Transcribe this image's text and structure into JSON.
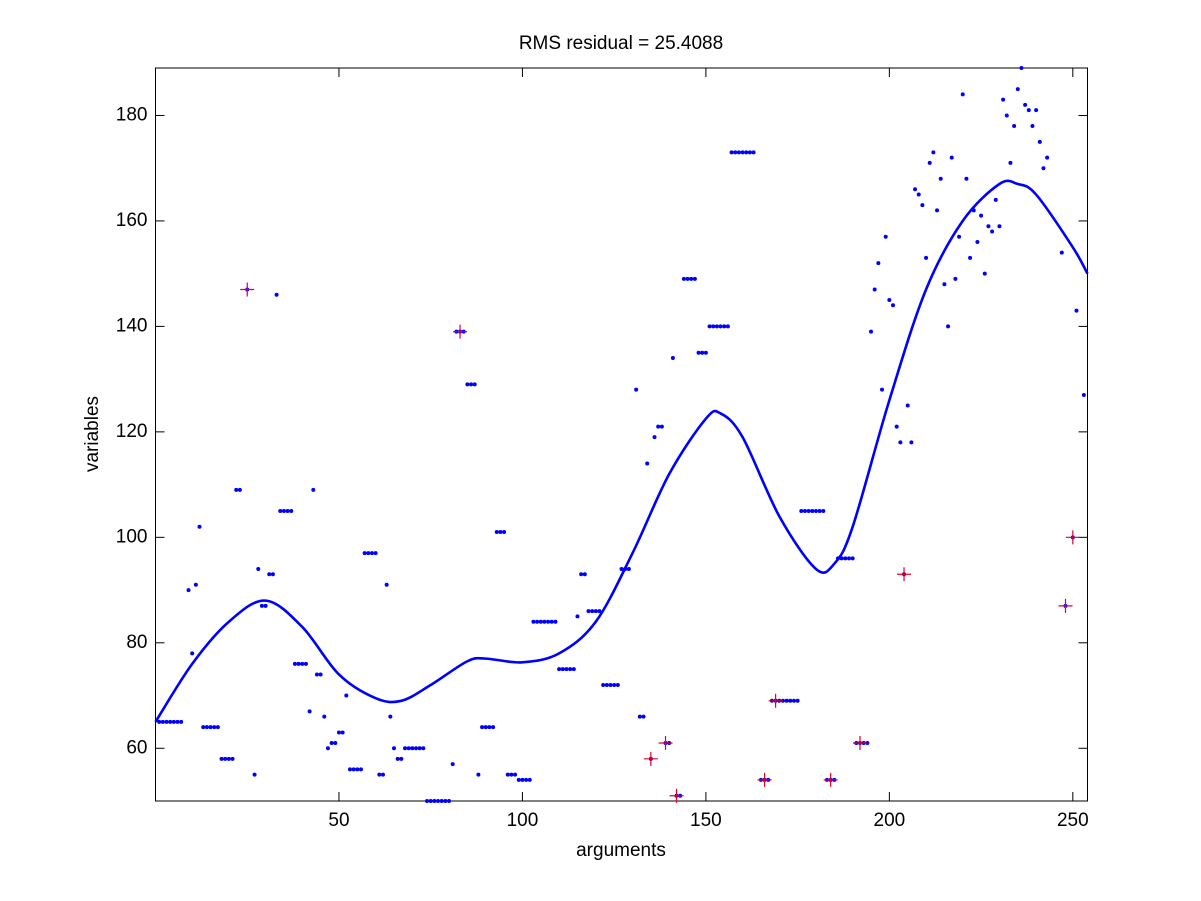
{
  "chart_data": {
    "type": "scatter",
    "title": "RMS residual = 25.4088",
    "x_label": "arguments",
    "y_label": "variables",
    "xlim": [
      0,
      254
    ],
    "ylim": [
      50,
      189
    ],
    "xticks": [
      50,
      100,
      150,
      200,
      250
    ],
    "yticks": [
      60,
      80,
      100,
      120,
      140,
      160,
      180
    ],
    "series": [
      {
        "type": "scatter",
        "marker": "dot",
        "color": "#0000ff",
        "x": [
          1,
          2,
          3,
          4,
          5,
          6,
          7,
          9,
          10,
          11,
          12,
          13,
          14,
          15,
          16,
          17,
          18,
          19,
          20,
          21,
          22,
          23,
          25,
          27,
          28,
          29,
          30,
          31,
          32,
          33,
          34,
          35,
          36,
          37,
          38,
          39,
          40,
          41,
          42,
          43,
          44,
          45,
          46,
          47,
          48,
          49,
          50,
          51,
          52,
          53,
          54,
          55,
          56,
          57,
          58,
          59,
          60,
          61,
          62,
          63,
          64,
          65,
          66,
          67,
          68,
          69,
          70,
          71,
          72,
          73,
          74,
          75,
          76,
          77,
          78,
          79,
          80,
          81,
          82,
          83,
          84,
          85,
          86,
          87,
          88,
          89,
          90,
          91,
          92,
          93,
          94,
          95,
          96,
          97,
          98,
          99,
          100,
          101,
          102,
          103,
          104,
          105,
          106,
          107,
          108,
          109,
          110,
          111,
          112,
          113,
          114,
          115,
          116,
          117,
          118,
          119,
          120,
          121,
          122,
          123,
          124,
          125,
          126,
          127,
          128,
          129,
          131,
          132,
          133,
          134,
          135,
          136,
          137,
          138,
          139,
          140,
          141,
          142,
          143,
          144,
          145,
          146,
          147,
          148,
          149,
          150,
          151,
          152,
          153,
          154,
          155,
          156,
          157,
          158,
          159,
          160,
          161,
          162,
          163,
          165,
          166,
          167,
          168,
          169,
          170,
          171,
          172,
          173,
          174,
          175,
          176,
          177,
          178,
          179,
          180,
          181,
          182,
          183,
          184,
          185,
          186,
          187,
          188,
          189,
          190,
          191,
          192,
          193,
          194,
          195,
          196,
          197,
          198,
          199,
          200,
          201,
          202,
          203,
          204,
          205,
          206,
          207,
          208,
          209,
          210,
          211,
          212,
          213,
          214,
          215,
          216,
          217,
          218,
          219,
          220,
          221,
          222,
          223,
          224,
          225,
          226,
          227,
          228,
          229,
          230,
          231,
          232,
          233,
          234,
          235,
          236,
          237,
          238,
          239,
          240,
          241,
          242,
          243,
          247,
          248,
          250,
          251,
          253
        ],
        "values": [
          65,
          65,
          65,
          65,
          65,
          65,
          65,
          90,
          78,
          91,
          102,
          64,
          64,
          64,
          64,
          64,
          58,
          58,
          58,
          58,
          109,
          109,
          147,
          55,
          94,
          87,
          87,
          93,
          93,
          146,
          105,
          105,
          105,
          105,
          76,
          76,
          76,
          76,
          67,
          109,
          74,
          74,
          66,
          60,
          61,
          61,
          63,
          63,
          70,
          56,
          56,
          56,
          56,
          97,
          97,
          97,
          97,
          55,
          55,
          91,
          66,
          60,
          58,
          58,
          60,
          60,
          60,
          60,
          60,
          60,
          50,
          50,
          50,
          50,
          50,
          50,
          50,
          57,
          139,
          139,
          139,
          129,
          129,
          129,
          55,
          64,
          64,
          64,
          64,
          101,
          101,
          101,
          55,
          55,
          55,
          54,
          54,
          54,
          54,
          84,
          84,
          84,
          84,
          84,
          84,
          84,
          75,
          75,
          75,
          75,
          75,
          85,
          93,
          93,
          86,
          86,
          86,
          86,
          72,
          72,
          72,
          72,
          72,
          94,
          94,
          94,
          128,
          66,
          66,
          114,
          58,
          119,
          121,
          121,
          61,
          61,
          134,
          51,
          51,
          149,
          149,
          149,
          149,
          135,
          135,
          135,
          140,
          140,
          140,
          140,
          140,
          140,
          173,
          173,
          173,
          173,
          173,
          173,
          173,
          54,
          54,
          54,
          69,
          69,
          69,
          69,
          69,
          69,
          69,
          69,
          105,
          105,
          105,
          105,
          105,
          105,
          105,
          54,
          54,
          54,
          96,
          96,
          96,
          96,
          96,
          61,
          61,
          61,
          61,
          139,
          147,
          152,
          128,
          157,
          145,
          144,
          121,
          118,
          93,
          125,
          118,
          166,
          165,
          163,
          153,
          171,
          173,
          162,
          168,
          148,
          140,
          172,
          149,
          157,
          184,
          168,
          153,
          162,
          156,
          161,
          150,
          159,
          158,
          164,
          159,
          183,
          180,
          171,
          178,
          185,
          189,
          182,
          181,
          178,
          181,
          175,
          170,
          172,
          154,
          87,
          100,
          143,
          127
        ]
      },
      {
        "type": "scatter",
        "marker": "plus",
        "color": "#e0002a",
        "x": [
          25,
          83,
          135,
          139,
          142,
          166,
          169,
          184,
          192,
          204,
          248,
          250
        ],
        "values": [
          147,
          139,
          58,
          61,
          51,
          54,
          69,
          54,
          61,
          93,
          87,
          100
        ]
      },
      {
        "type": "line",
        "color": "#0000ff",
        "x": [
          0,
          10,
          20,
          30,
          40,
          50,
          60,
          67,
          75,
          85,
          90,
          100,
          110,
          120,
          130,
          140,
          150,
          154,
          160,
          170,
          180,
          185,
          190,
          200,
          210,
          220,
          230,
          235,
          240,
          250,
          254
        ],
        "values": [
          65,
          76,
          84,
          88,
          83,
          74,
          69.5,
          69,
          72,
          76.5,
          77,
          76.3,
          78,
          84,
          97,
          112,
          122.5,
          123.5,
          119,
          104,
          94,
          95,
          102,
          126,
          147,
          160,
          167,
          167,
          165,
          155,
          150
        ]
      }
    ]
  }
}
